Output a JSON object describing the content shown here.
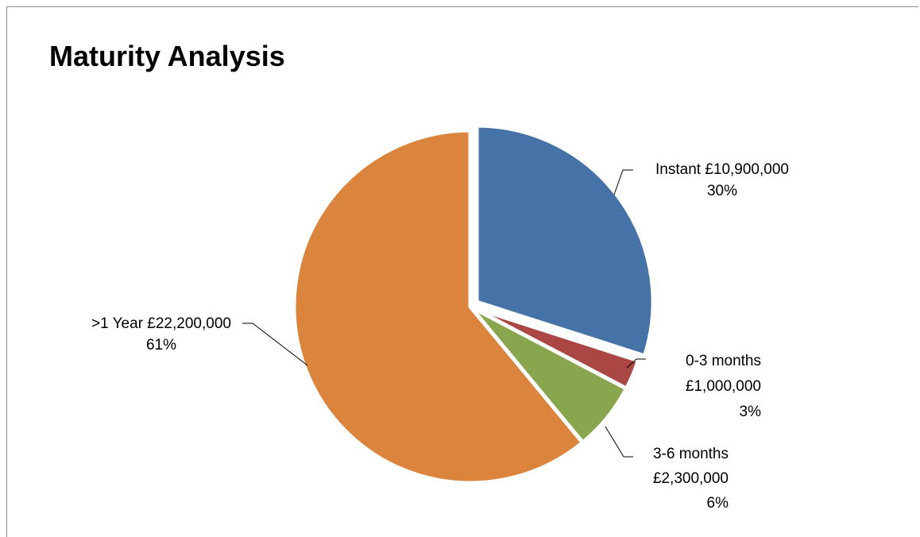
{
  "chart_data": {
    "type": "pie",
    "title": "Maturity Analysis",
    "currency": "£",
    "slices": [
      {
        "name": "Instant",
        "value": 10900000,
        "value_label": "£10,900,000",
        "percent_label": "30%",
        "color": "#4572A7",
        "exploded": true
      },
      {
        "name": "0-3 months",
        "value": 1000000,
        "value_label": "£1,000,000",
        "percent_label": "3%",
        "color": "#AA4643",
        "exploded": false
      },
      {
        "name": "3-6 months",
        "value": 2300000,
        "value_label": "£2,300,000",
        "percent_label": "6%",
        "color": "#89A54E",
        "exploded": false
      },
      {
        "name": ">1 Year",
        "value": 22200000,
        "value_label": "£22,200,000",
        "percent_label": "61%",
        "color": "#DB843D",
        "exploded": false
      }
    ],
    "legend": "none",
    "start_angle": "12 o'clock, clockwise"
  }
}
